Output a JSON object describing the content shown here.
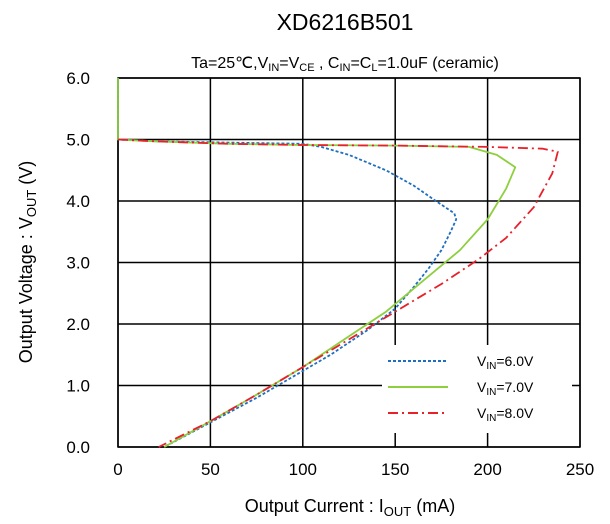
{
  "chart_data": {
    "type": "line",
    "title": "XD6216B501",
    "subtitle": {
      "ta": "Ta=25℃,V",
      "in_sub": "IN",
      "eq": "=V",
      "ce_sub": "CE",
      "mid": " , C",
      "cin_sub": "IN",
      "eq2": "=C",
      "cl_sub": "L",
      "tail": "=1.0uF (ceramic)"
    },
    "xlabel": {
      "prefix": "Output Current  : I",
      "sub": "OUT",
      "suffix": " (mA)"
    },
    "ylabel": {
      "prefix": "Output Voltage : V",
      "sub": "OUT",
      "suffix": " (V)"
    },
    "xlim": [
      0,
      250
    ],
    "ylim": [
      0,
      6
    ],
    "xticks": [
      "0",
      "50",
      "100",
      "150",
      "200",
      "250"
    ],
    "yticks": [
      "0.0",
      "1.0",
      "2.0",
      "3.0",
      "4.0",
      "5.0",
      "6.0"
    ],
    "grid": true,
    "legend_position": "bottom-right",
    "series": [
      {
        "name": {
          "prefix": "V",
          "sub": "IN",
          "suffix": "=6.0V"
        },
        "color": "#1f6fc0",
        "dash": "dotted",
        "points": [
          [
            0,
            6.0
          ],
          [
            0,
            5.0
          ],
          [
            20,
            4.97
          ],
          [
            60,
            4.95
          ],
          [
            100,
            4.93
          ],
          [
            110,
            4.88
          ],
          [
            125,
            4.75
          ],
          [
            145,
            4.5
          ],
          [
            160,
            4.25
          ],
          [
            172,
            4.0
          ],
          [
            182,
            3.8
          ],
          [
            183,
            3.7
          ],
          [
            180,
            3.5
          ],
          [
            175,
            3.2
          ],
          [
            168,
            2.9
          ],
          [
            160,
            2.6
          ],
          [
            150,
            2.25
          ],
          [
            135,
            1.9
          ],
          [
            115,
            1.5
          ],
          [
            95,
            1.15
          ],
          [
            75,
            0.8
          ],
          [
            50,
            0.4
          ],
          [
            25,
            0.0
          ]
        ]
      },
      {
        "name": {
          "prefix": "V",
          "sub": "IN",
          "suffix": "=7.0V"
        },
        "color": "#8dcf3f",
        "dash": "solid",
        "points": [
          [
            0,
            6.0
          ],
          [
            0,
            5.0
          ],
          [
            20,
            4.97
          ],
          [
            60,
            4.93
          ],
          [
            100,
            4.91
          ],
          [
            150,
            4.9
          ],
          [
            190,
            4.88
          ],
          [
            205,
            4.75
          ],
          [
            215,
            4.55
          ],
          [
            210,
            4.2
          ],
          [
            200,
            3.7
          ],
          [
            185,
            3.2
          ],
          [
            165,
            2.7
          ],
          [
            145,
            2.2
          ],
          [
            125,
            1.8
          ],
          [
            100,
            1.3
          ],
          [
            75,
            0.85
          ],
          [
            50,
            0.42
          ],
          [
            25,
            0.0
          ]
        ]
      },
      {
        "name": {
          "prefix": "V",
          "sub": "IN",
          "suffix": "=8.0V"
        },
        "color": "#e8202a",
        "dash": "dashdot",
        "points": [
          [
            0,
            5.0
          ],
          [
            20,
            4.97
          ],
          [
            60,
            4.93
          ],
          [
            100,
            4.91
          ],
          [
            150,
            4.9
          ],
          [
            200,
            4.88
          ],
          [
            230,
            4.85
          ],
          [
            238,
            4.8
          ],
          [
            235,
            4.45
          ],
          [
            225,
            3.9
          ],
          [
            210,
            3.4
          ],
          [
            195,
            3.05
          ],
          [
            175,
            2.65
          ],
          [
            150,
            2.2
          ],
          [
            125,
            1.75
          ],
          [
            100,
            1.3
          ],
          [
            75,
            0.85
          ],
          [
            50,
            0.42
          ],
          [
            22,
            0.0
          ]
        ]
      }
    ]
  }
}
